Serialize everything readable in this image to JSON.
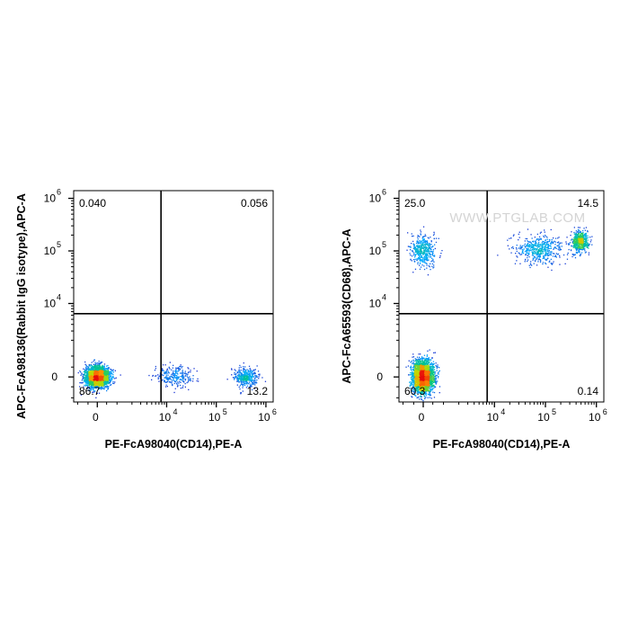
{
  "watermark": "WWW.PTGLAB.COM",
  "chart_data": [
    {
      "type": "scatter",
      "xlabel": "PE-FcA98040(CD14),PE-A",
      "ylabel": "APC-FcA98136(Rabbit IgG isotype),APC-A",
      "x_ticks": [
        {
          "label": "0",
          "pow": ""
        },
        {
          "label": "10",
          "pow": "4"
        },
        {
          "label": "10",
          "pow": "5"
        },
        {
          "label": "10",
          "pow": "6"
        }
      ],
      "y_ticks": [
        {
          "label": "0",
          "pow": ""
        },
        {
          "label": "10",
          "pow": "4"
        },
        {
          "label": "10",
          "pow": "5"
        },
        {
          "label": "10",
          "pow": "6"
        }
      ],
      "quadrants": {
        "upper_left": "0.040",
        "upper_right": "0.056",
        "lower_left": "86.7",
        "lower_right": "13.2"
      },
      "gate": {
        "x": "7.7e3",
        "y": "6.4e3"
      },
      "populations": [
        {
          "name": "",
          "count": 2600,
          "x_mean": 0,
          "y_mean": 0,
          "x_sd": "3.2e2",
          "y_sd": "2.6e2"
        },
        {
          "name": "",
          "count": 260,
          "x_mean": "1.5e4",
          "y_mean": 0,
          "x_sd": "8e3",
          "y_sd": "2.6e2"
        },
        {
          "name": "",
          "count": 380,
          "x_mean": "3.9e5",
          "y_mean": 0,
          "x_sd": "1.2e5",
          "y_sd": "2.4e2"
        }
      ]
    },
    {
      "type": "scatter",
      "xlabel": "PE-FcA98040(CD14),PE-A",
      "ylabel": "APC-FcA65593(CD68),APC-A",
      "x_ticks": [
        {
          "label": "0",
          "pow": ""
        },
        {
          "label": "10",
          "pow": "4"
        },
        {
          "label": "10",
          "pow": "5"
        },
        {
          "label": "10",
          "pow": "6"
        }
      ],
      "y_ticks": [
        {
          "label": "0",
          "pow": ""
        },
        {
          "label": "10",
          "pow": "4"
        },
        {
          "label": "10",
          "pow": "5"
        },
        {
          "label": "10",
          "pow": "6"
        }
      ],
      "quadrants": {
        "upper_left": "25.0",
        "upper_right": "14.5",
        "lower_left": "60.3",
        "lower_right": "0.14"
      },
      "gate": {
        "x": "7.2e3",
        "y": "6.4e3"
      },
      "populations": [
        {
          "name": "",
          "count": 2300,
          "x_mean": 0,
          "y_mean": 0,
          "x_sd": "2.8e2",
          "y_sd": "4.2e2"
        },
        {
          "name": "",
          "count": 420,
          "x_mean": 0,
          "y_mean": "1e5",
          "x_sd": "3.2e2",
          "y_sd": "4e4"
        },
        {
          "name": "",
          "count": 500,
          "x_mean": "7e4",
          "y_mean": "1.1e5",
          "x_sd": "5e4",
          "y_sd": "4e4"
        },
        {
          "name": "",
          "count": 520,
          "x_mean": "4.8e5",
          "y_mean": "1.5e5",
          "x_sd": "1e5",
          "y_sd": "4e4"
        }
      ]
    }
  ]
}
